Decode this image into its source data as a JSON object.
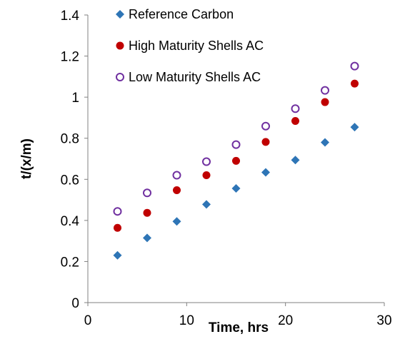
{
  "chart_data": {
    "type": "scatter",
    "title": "",
    "xlabel": "Time, hrs",
    "ylabel": "t/(x/m)",
    "xlim": [
      0,
      30
    ],
    "ylim": [
      0,
      1.4
    ],
    "xticks": [
      0,
      10,
      20,
      30
    ],
    "yticks": [
      0,
      0.2,
      0.4,
      0.6,
      0.8,
      1,
      1.2,
      1.4
    ],
    "grid": false,
    "legend_position": "top-left",
    "series": [
      {
        "name": "Reference Carbon",
        "marker": "diamond",
        "color": "#2E75B6",
        "x": [
          3,
          6,
          9,
          12,
          15,
          18,
          21,
          24,
          27
        ],
        "y": [
          0.23,
          0.315,
          0.395,
          0.478,
          0.556,
          0.634,
          0.694,
          0.78,
          0.854
        ]
      },
      {
        "name": "High Maturity Shells AC",
        "marker": "circle-filled",
        "color": "#C00000",
        "x": [
          3,
          6,
          9,
          12,
          15,
          18,
          21,
          24,
          27
        ],
        "y": [
          0.364,
          0.437,
          0.547,
          0.62,
          0.69,
          0.782,
          0.884,
          0.976,
          1.066
        ]
      },
      {
        "name": "Low Maturity Shells AC",
        "marker": "circle-open",
        "color": "#7030A0",
        "x": [
          3,
          6,
          9,
          12,
          15,
          18,
          21,
          24,
          27
        ],
        "y": [
          0.444,
          0.534,
          0.62,
          0.686,
          0.769,
          0.859,
          0.944,
          1.033,
          1.151
        ]
      }
    ]
  }
}
